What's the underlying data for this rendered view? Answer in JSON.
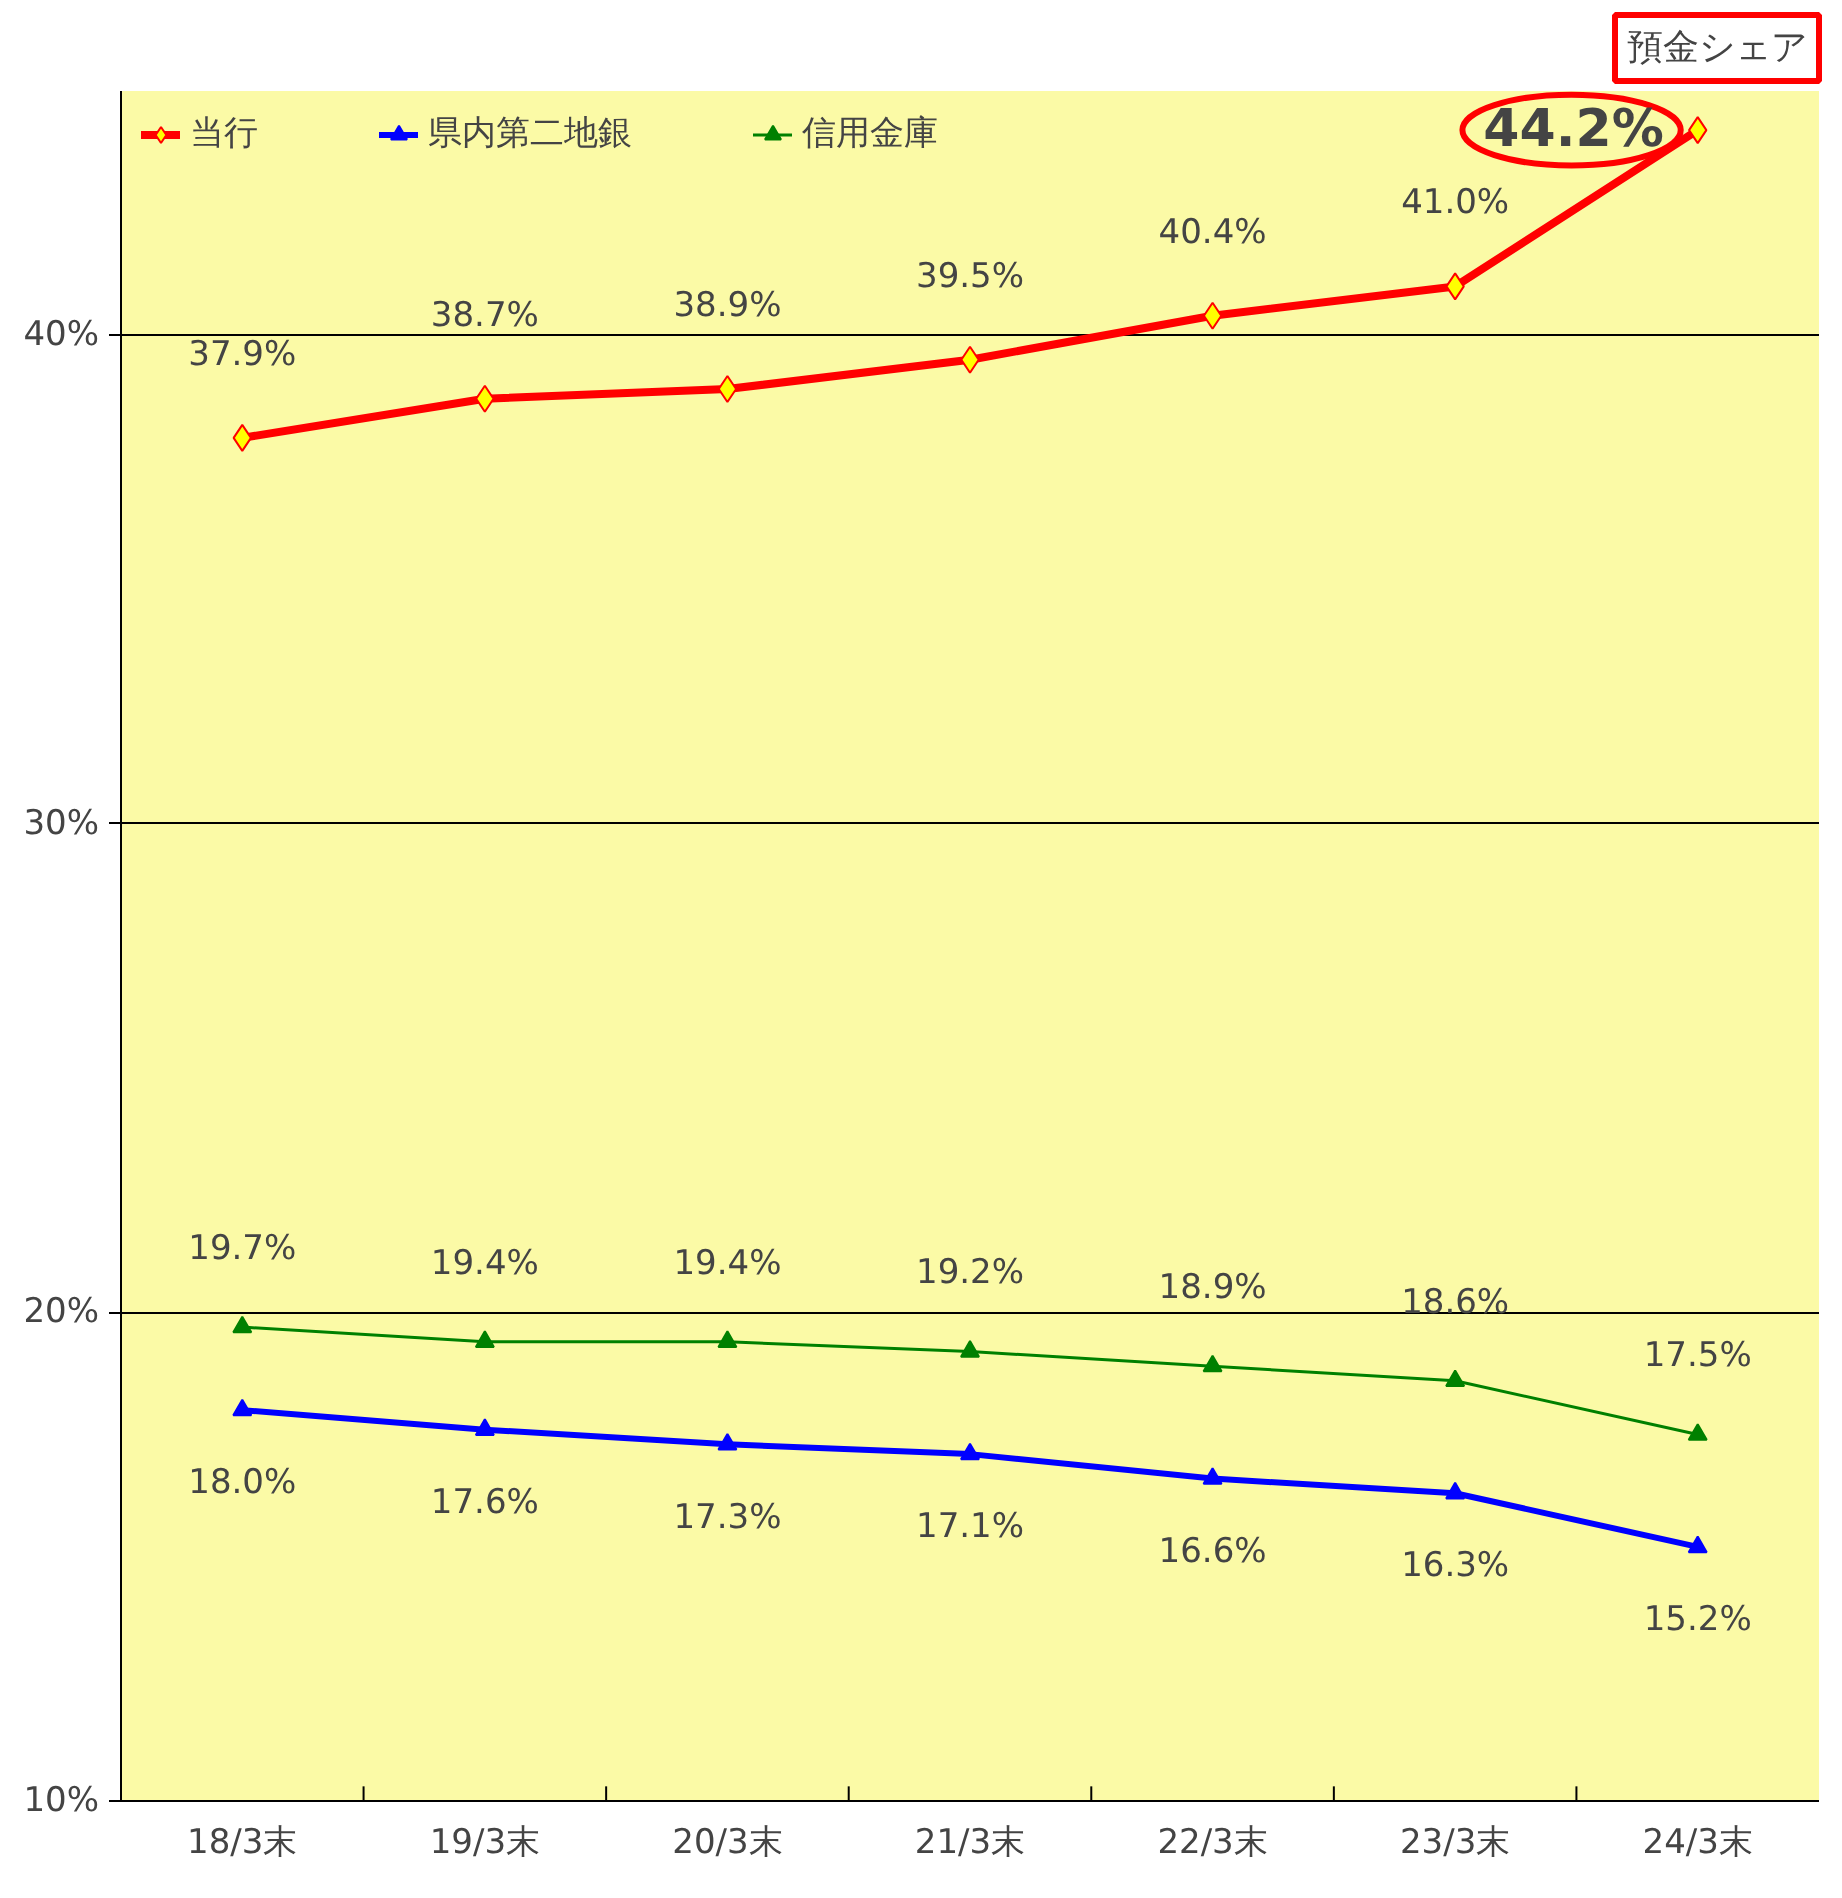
{
  "chart_data": {
    "type": "line",
    "title": "預金シェア",
    "categories": [
      "18/3末",
      "19/3末",
      "20/3末",
      "21/3末",
      "22/3末",
      "23/3末",
      "24/3末"
    ],
    "series": [
      {
        "name": "当行",
        "color": "#ff0000",
        "marker": "diamond",
        "values": [
          37.9,
          38.7,
          38.9,
          39.5,
          40.4,
          41.0,
          44.2
        ],
        "value_labels": [
          "37.9%",
          "38.7%",
          "38.9%",
          "39.5%",
          "40.4%",
          "41.0%",
          "44.2%"
        ]
      },
      {
        "name": "県内第二地銀",
        "color": "#0000ff",
        "marker": "triangle",
        "values": [
          18.0,
          17.6,
          17.3,
          17.1,
          16.6,
          16.3,
          15.2
        ],
        "value_labels": [
          "18.0%",
          "17.6%",
          "17.3%",
          "17.1%",
          "16.6%",
          "16.3%",
          "15.2%"
        ]
      },
      {
        "name": "信用金庫",
        "color": "#008000",
        "marker": "triangle",
        "values": [
          19.7,
          19.4,
          19.4,
          19.2,
          18.9,
          18.6,
          17.5
        ],
        "value_labels": [
          "19.7%",
          "19.4%",
          "19.4%",
          "19.2%",
          "18.9%",
          "18.6%",
          "17.5%"
        ]
      }
    ],
    "ylim": [
      10,
      45
    ],
    "yticks": [
      {
        "value": 10,
        "label": "10%"
      },
      {
        "value": 20,
        "label": "20%"
      },
      {
        "value": 30,
        "label": "30%"
      },
      {
        "value": 40,
        "label": "40%"
      }
    ],
    "grid": "y",
    "legend": "top left"
  }
}
